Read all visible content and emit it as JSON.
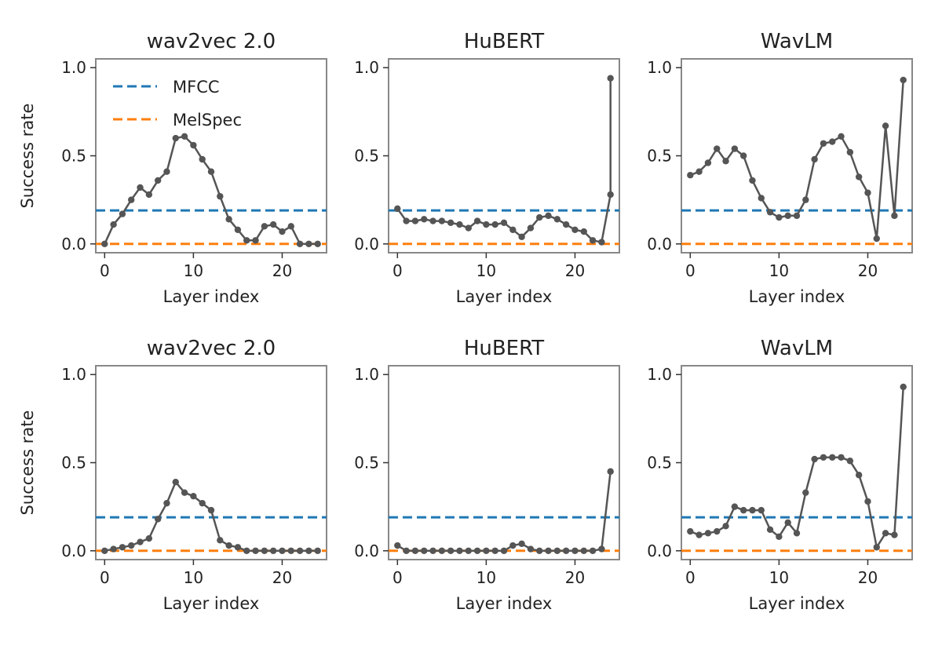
{
  "colors": {
    "mfcc": "#1f77b4",
    "melspec": "#ff7f0e",
    "series": "#555555",
    "axes": "#888888"
  },
  "legend": [
    {
      "label": "MFCC",
      "color": "#1f77b4"
    },
    {
      "label": "MelSpec",
      "color": "#ff7f0e"
    }
  ],
  "chart_data": [
    {
      "type": "line",
      "title": "wav2vec 2.0",
      "xlabel": "Layer index",
      "ylabel": "Success rate",
      "xlim": [
        -1,
        25
      ],
      "ylim": [
        -0.05,
        1.05
      ],
      "xticks": [
        0,
        10,
        20
      ],
      "yticks": [
        0.0,
        0.5,
        1.0
      ],
      "x": [
        0,
        1,
        2,
        3,
        4,
        5,
        6,
        7,
        8,
        9,
        10,
        11,
        12,
        13,
        14,
        15,
        16,
        17,
        18,
        19,
        20,
        21,
        22,
        23,
        24
      ],
      "y": [
        0.0,
        0.11,
        0.17,
        0.25,
        0.32,
        0.28,
        0.36,
        0.41,
        0.6,
        0.61,
        0.56,
        0.48,
        0.41,
        0.27,
        0.14,
        0.08,
        0.02,
        0.02,
        0.1,
        0.11,
        0.07,
        0.1,
        0.0,
        0.0,
        0.0
      ],
      "baselines": {
        "MFCC": 0.19,
        "MelSpec": 0.0
      },
      "legend": "upper-left"
    },
    {
      "type": "line",
      "title": "HuBERT",
      "xlabel": "Layer index",
      "ylabel": "",
      "xlim": [
        -1,
        25
      ],
      "ylim": [
        -0.05,
        1.05
      ],
      "xticks": [
        0,
        10,
        20
      ],
      "yticks": [
        0.0,
        0.5,
        1.0
      ],
      "x": [
        0,
        1,
        2,
        3,
        4,
        5,
        6,
        7,
        8,
        9,
        10,
        11,
        12,
        13,
        14,
        15,
        16,
        17,
        18,
        19,
        20,
        21,
        22,
        23,
        24
      ],
      "y": [
        0.2,
        0.13,
        0.13,
        0.14,
        0.13,
        0.13,
        0.12,
        0.11,
        0.09,
        0.13,
        0.11,
        0.11,
        0.12,
        0.08,
        0.04,
        0.09,
        0.15,
        0.16,
        0.14,
        0.11,
        0.08,
        0.07,
        0.02,
        0.01,
        0.28
      ],
      "extra_point": {
        "x": 24,
        "y": 0.94
      },
      "baselines": {
        "MFCC": 0.19,
        "MelSpec": 0.0
      }
    },
    {
      "type": "line",
      "title": "WavLM",
      "xlabel": "Layer index",
      "ylabel": "",
      "xlim": [
        -1,
        25
      ],
      "ylim": [
        -0.05,
        1.05
      ],
      "xticks": [
        0,
        10,
        20
      ],
      "yticks": [
        0.0,
        0.5,
        1.0
      ],
      "x": [
        0,
        1,
        2,
        3,
        4,
        5,
        6,
        7,
        8,
        9,
        10,
        11,
        12,
        13,
        14,
        15,
        16,
        17,
        18,
        19,
        20,
        21,
        22,
        23,
        24
      ],
      "y": [
        0.39,
        0.41,
        0.46,
        0.54,
        0.47,
        0.54,
        0.5,
        0.36,
        0.26,
        0.18,
        0.15,
        0.16,
        0.16,
        0.25,
        0.48,
        0.57,
        0.58,
        0.61,
        0.52,
        0.38,
        0.29,
        0.03,
        0.67,
        0.16,
        0.93
      ],
      "baselines": {
        "MFCC": 0.19,
        "MelSpec": 0.0
      }
    },
    {
      "type": "line",
      "title": "wav2vec 2.0",
      "xlabel": "Layer index",
      "ylabel": "Success rate",
      "xlim": [
        -1,
        25
      ],
      "ylim": [
        -0.05,
        1.05
      ],
      "xticks": [
        0,
        10,
        20
      ],
      "yticks": [
        0.0,
        0.5,
        1.0
      ],
      "x": [
        0,
        1,
        2,
        3,
        4,
        5,
        6,
        7,
        8,
        9,
        10,
        11,
        12,
        13,
        14,
        15,
        16,
        17,
        18,
        19,
        20,
        21,
        22,
        23,
        24
      ],
      "y": [
        0.0,
        0.01,
        0.02,
        0.03,
        0.05,
        0.07,
        0.18,
        0.27,
        0.39,
        0.33,
        0.31,
        0.27,
        0.23,
        0.06,
        0.03,
        0.02,
        0.0,
        0.0,
        0.0,
        0.0,
        0.0,
        0.0,
        0.0,
        0.0,
        0.0
      ],
      "baselines": {
        "MFCC": 0.19,
        "MelSpec": 0.0
      }
    },
    {
      "type": "line",
      "title": "HuBERT",
      "xlabel": "Layer index",
      "ylabel": "",
      "xlim": [
        -1,
        25
      ],
      "ylim": [
        -0.05,
        1.05
      ],
      "xticks": [
        0,
        10,
        20
      ],
      "yticks": [
        0.0,
        0.5,
        1.0
      ],
      "x": [
        0,
        1,
        2,
        3,
        4,
        5,
        6,
        7,
        8,
        9,
        10,
        11,
        12,
        13,
        14,
        15,
        16,
        17,
        18,
        19,
        20,
        21,
        22,
        23,
        24
      ],
      "y": [
        0.03,
        0.0,
        0.0,
        0.0,
        0.0,
        0.0,
        0.0,
        0.0,
        0.0,
        0.0,
        0.0,
        0.0,
        0.0,
        0.03,
        0.04,
        0.01,
        0.0,
        0.0,
        0.0,
        0.0,
        0.0,
        0.0,
        0.0,
        0.01,
        0.45
      ],
      "baselines": {
        "MFCC": 0.19,
        "MelSpec": 0.0
      }
    },
    {
      "type": "line",
      "title": "WavLM",
      "xlabel": "Layer index",
      "ylabel": "",
      "xlim": [
        -1,
        25
      ],
      "ylim": [
        -0.05,
        1.05
      ],
      "xticks": [
        0,
        10,
        20
      ],
      "yticks": [
        0.0,
        0.5,
        1.0
      ],
      "x": [
        0,
        1,
        2,
        3,
        4,
        5,
        6,
        7,
        8,
        9,
        10,
        11,
        12,
        13,
        14,
        15,
        16,
        17,
        18,
        19,
        20,
        21,
        22,
        23,
        24
      ],
      "y": [
        0.11,
        0.09,
        0.1,
        0.11,
        0.14,
        0.25,
        0.23,
        0.23,
        0.23,
        0.12,
        0.08,
        0.16,
        0.1,
        0.33,
        0.52,
        0.53,
        0.53,
        0.53,
        0.51,
        0.43,
        0.28,
        0.02,
        0.1,
        0.09,
        0.93
      ],
      "baselines": {
        "MFCC": 0.19,
        "MelSpec": 0.0
      }
    }
  ]
}
